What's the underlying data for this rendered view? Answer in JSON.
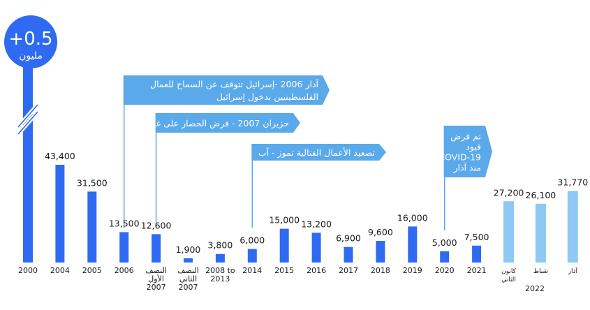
{
  "chart_data": {
    "type": "bar",
    "title": "",
    "xlabel": "",
    "ylabel": "",
    "grid": false,
    "legend": "none",
    "colors": {
      "bar": "#2f6bf2",
      "bar_2022": "#8ec8f4",
      "callout": "#5aa9ea",
      "text": "#1a1a1a"
    },
    "top_bubble": {
      "value": "+0.5",
      "unit": "مليون"
    },
    "categories": [
      {
        "label": [
          "2000"
        ],
        "value": null,
        "value_label": ""
      },
      {
        "label": [
          "2004"
        ],
        "value": 43400,
        "value_label": "43,400"
      },
      {
        "label": [
          "2005"
        ],
        "value": 31500,
        "value_label": "31,500"
      },
      {
        "label": [
          "2006"
        ],
        "value": 13500,
        "value_label": "13,500"
      },
      {
        "label": [
          "النصف",
          "الأول",
          "2007"
        ],
        "value": 12600,
        "value_label": "12,600"
      },
      {
        "label": [
          "النصف",
          "الثاني",
          "2007"
        ],
        "value": 1900,
        "value_label": "1,900"
      },
      {
        "label": [
          "2008 to",
          "2013"
        ],
        "value": 3800,
        "value_label": "3,800"
      },
      {
        "label": [
          "2014"
        ],
        "value": 6000,
        "value_label": "6,000"
      },
      {
        "label": [
          "2015"
        ],
        "value": 15000,
        "value_label": "15,000"
      },
      {
        "label": [
          "2016"
        ],
        "value": 13200,
        "value_label": "13,200"
      },
      {
        "label": [
          "2017"
        ],
        "value": 6900,
        "value_label": "6,900"
      },
      {
        "label": [
          "2018"
        ],
        "value": 9600,
        "value_label": "9,600"
      },
      {
        "label": [
          "2019"
        ],
        "value": 16000,
        "value_label": "16,000"
      },
      {
        "label": [
          "2020"
        ],
        "value": 5000,
        "value_label": "5,000"
      },
      {
        "label": [
          "2021"
        ],
        "value": 7500,
        "value_label": "7,500"
      },
      {
        "label": [
          "كانون",
          "الثاني"
        ],
        "value": 27200,
        "value_label": "27,200",
        "group": "2022"
      },
      {
        "label": [
          "شباط"
        ],
        "value": 26100,
        "value_label": "26,100",
        "group": "2022"
      },
      {
        "label": [
          "آذار"
        ],
        "value": 31770,
        "value_label": "31,770",
        "group": "2022"
      }
    ],
    "group_label_2022": "2022",
    "annotations": [
      {
        "anchor": "2006",
        "lines": [
          "آذار 2006 -إسرائيل تتوقف عن السماح للعمال",
          "الفلسطينيين بدخول إسرائيل"
        ]
      },
      {
        "anchor": "النصف الأول 2007",
        "lines": [
          "حزيران 2007 - فرض الحصار على غزة"
        ]
      },
      {
        "anchor": "2014",
        "lines": [
          "تصعيد الأعمال القتالية تموز - آب"
        ]
      },
      {
        "anchor": "2020",
        "lines": [
          "تم فرض",
          "قيود",
          "COVID-19",
          "منذ آذار"
        ]
      }
    ]
  }
}
